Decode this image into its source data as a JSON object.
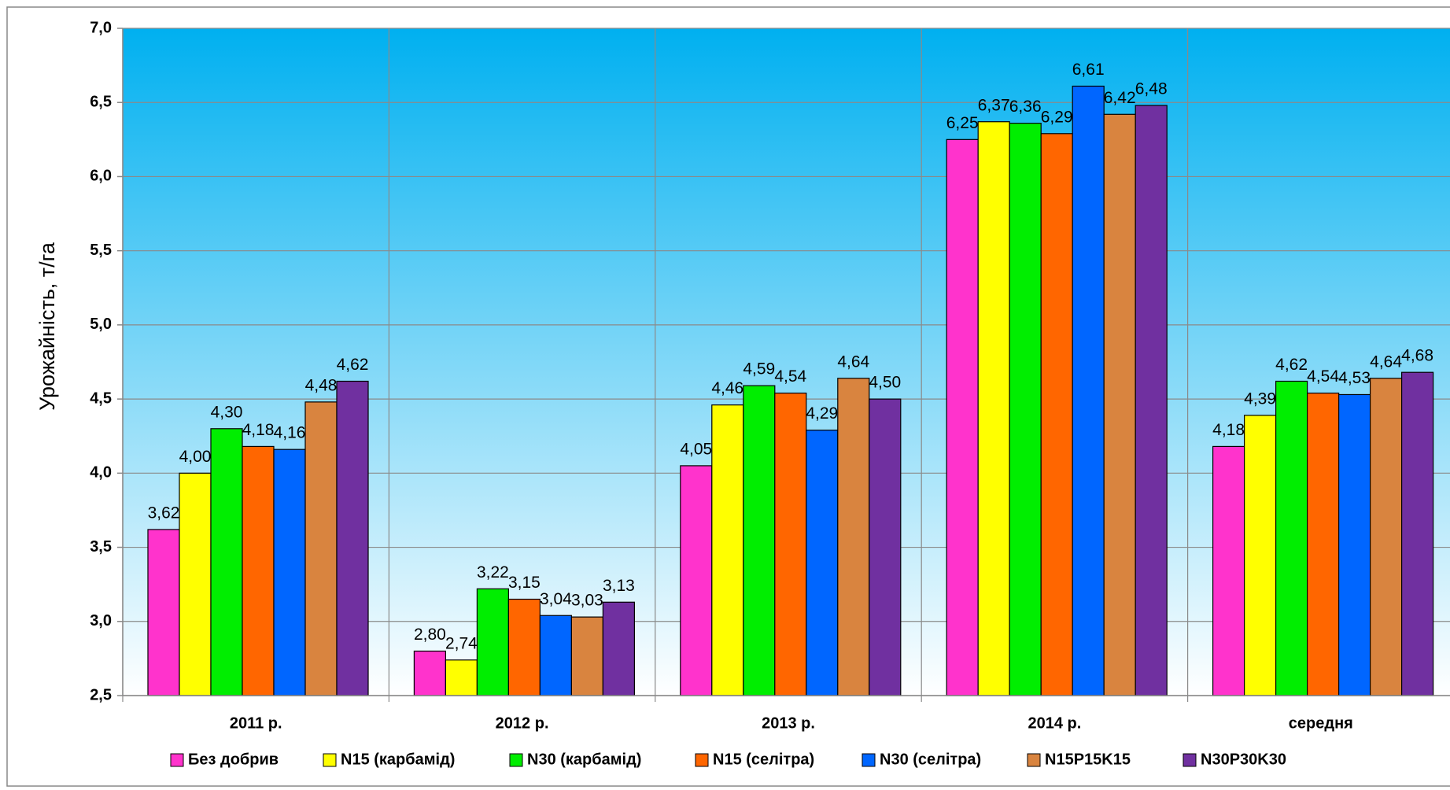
{
  "chart_data": {
    "type": "bar",
    "y_label": "Урожайність, т/га",
    "categories": [
      "2011 р.",
      "2012 р.",
      "2013 р.",
      "2014 р.",
      "середня"
    ],
    "ylim": [
      2.5,
      7.0
    ],
    "yticks": [
      {
        "value": 2.5,
        "label": "2,5"
      },
      {
        "value": 3.0,
        "label": "3,0"
      },
      {
        "value": 3.5,
        "label": "3,5"
      },
      {
        "value": 4.0,
        "label": "4,0"
      },
      {
        "value": 4.5,
        "label": "4,5"
      },
      {
        "value": 5.0,
        "label": "5,0"
      },
      {
        "value": 5.5,
        "label": "5,5"
      },
      {
        "value": 6.0,
        "label": "6,0"
      },
      {
        "value": 6.5,
        "label": "6,5"
      },
      {
        "value": 7.0,
        "label": "7,0"
      }
    ],
    "grid": true,
    "legend": "bottom",
    "series": [
      {
        "name": "Без добрив",
        "color": "#ff33cc",
        "values": [
          3.62,
          2.8,
          4.05,
          6.25,
          4.18
        ],
        "value_labels": [
          "3,62",
          "2,80",
          "4,05",
          "6,25",
          "4,18"
        ]
      },
      {
        "name": "N15 (карбамід)",
        "color": "#ffff00",
        "values": [
          4.0,
          2.74,
          4.46,
          6.37,
          4.39
        ],
        "value_labels": [
          "4,00",
          "2,74",
          "4,46",
          "6,37",
          "4,39"
        ]
      },
      {
        "name": "N30 (карбамід)",
        "color": "#00ee00",
        "values": [
          4.3,
          3.22,
          4.59,
          6.36,
          4.62
        ],
        "value_labels": [
          "4,30",
          "3,22",
          "4,59",
          "6,36",
          "4,62"
        ]
      },
      {
        "name": "N15 (селітра)",
        "color": "#ff6600",
        "values": [
          4.18,
          3.15,
          4.54,
          6.29,
          4.54
        ],
        "value_labels": [
          "4,18",
          "3,15",
          "4,54",
          "6,29",
          "4,54"
        ]
      },
      {
        "name": "N30 (селітра)",
        "color": "#0066ff",
        "values": [
          4.16,
          3.04,
          4.29,
          6.61,
          4.53
        ],
        "value_labels": [
          "4,16",
          "3,04",
          "4,29",
          "6,61",
          "4,53"
        ]
      },
      {
        "name": "N15P15K15",
        "color": "#d9843f",
        "values": [
          4.48,
          3.03,
          4.64,
          6.42,
          4.64
        ],
        "value_labels": [
          "4,48",
          "3,03",
          "4,64",
          "6,42",
          "4,64"
        ]
      },
      {
        "name": "N30P30K30",
        "color": "#7030a0",
        "values": [
          4.62,
          3.13,
          4.5,
          6.48,
          4.68
        ],
        "value_labels": [
          "4,62",
          "3,13",
          "4,50",
          "6,48",
          "4,68"
        ]
      }
    ]
  }
}
